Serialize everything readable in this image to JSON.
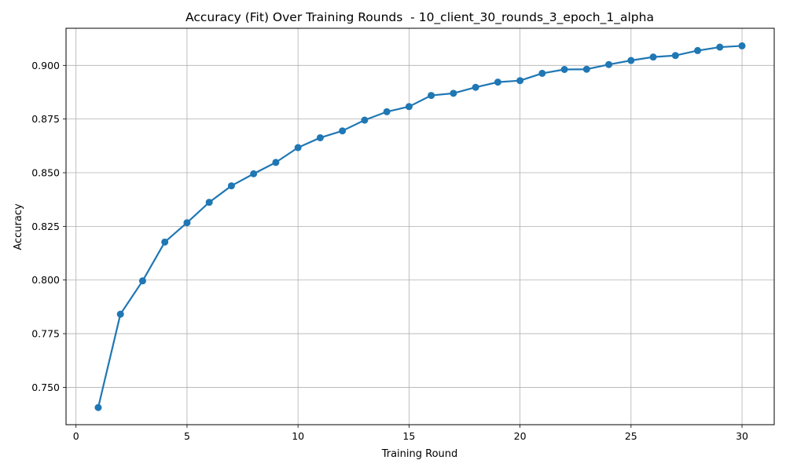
{
  "chart_data": {
    "type": "line",
    "title": "Accuracy (Fit) Over Training Rounds  - 10_client_30_rounds_3_epoch_1_alpha",
    "xlabel": "Training Round",
    "ylabel": "Accuracy",
    "xlim": [
      -0.45,
      31.45
    ],
    "ylim": [
      0.7326,
      0.9173
    ],
    "x_ticks": [
      0,
      5,
      10,
      15,
      20,
      25,
      30
    ],
    "x_tick_labels": [
      "0",
      "5",
      "10",
      "15",
      "20",
      "25",
      "30"
    ],
    "y_ticks": [
      0.75,
      0.775,
      0.8,
      0.825,
      0.85,
      0.875,
      0.9
    ],
    "y_tick_labels": [
      "0.750",
      "0.775",
      "0.800",
      "0.825",
      "0.850",
      "0.875",
      "0.900"
    ],
    "grid": true,
    "colors": {
      "line": "#1f77b4",
      "grid": "#b0b0b0",
      "axes": "#000000"
    },
    "series": [
      {
        "x": [
          1,
          2,
          3,
          4,
          5,
          6,
          7,
          8,
          9,
          10,
          11,
          12,
          13,
          14,
          15,
          16,
          17,
          18,
          19,
          20,
          21,
          22,
          23,
          24,
          25,
          26,
          27,
          28,
          29,
          30
        ],
        "values": [
          0.7406,
          0.7841,
          0.7996,
          0.8177,
          0.8267,
          0.8362,
          0.8439,
          0.8495,
          0.8548,
          0.8617,
          0.8663,
          0.8695,
          0.8745,
          0.8784,
          0.8808,
          0.886,
          0.887,
          0.8898,
          0.8922,
          0.8929,
          0.8963,
          0.8981,
          0.8982,
          0.9004,
          0.9023,
          0.9039,
          0.9046,
          0.9069,
          0.9085,
          0.9091
        ]
      }
    ]
  }
}
